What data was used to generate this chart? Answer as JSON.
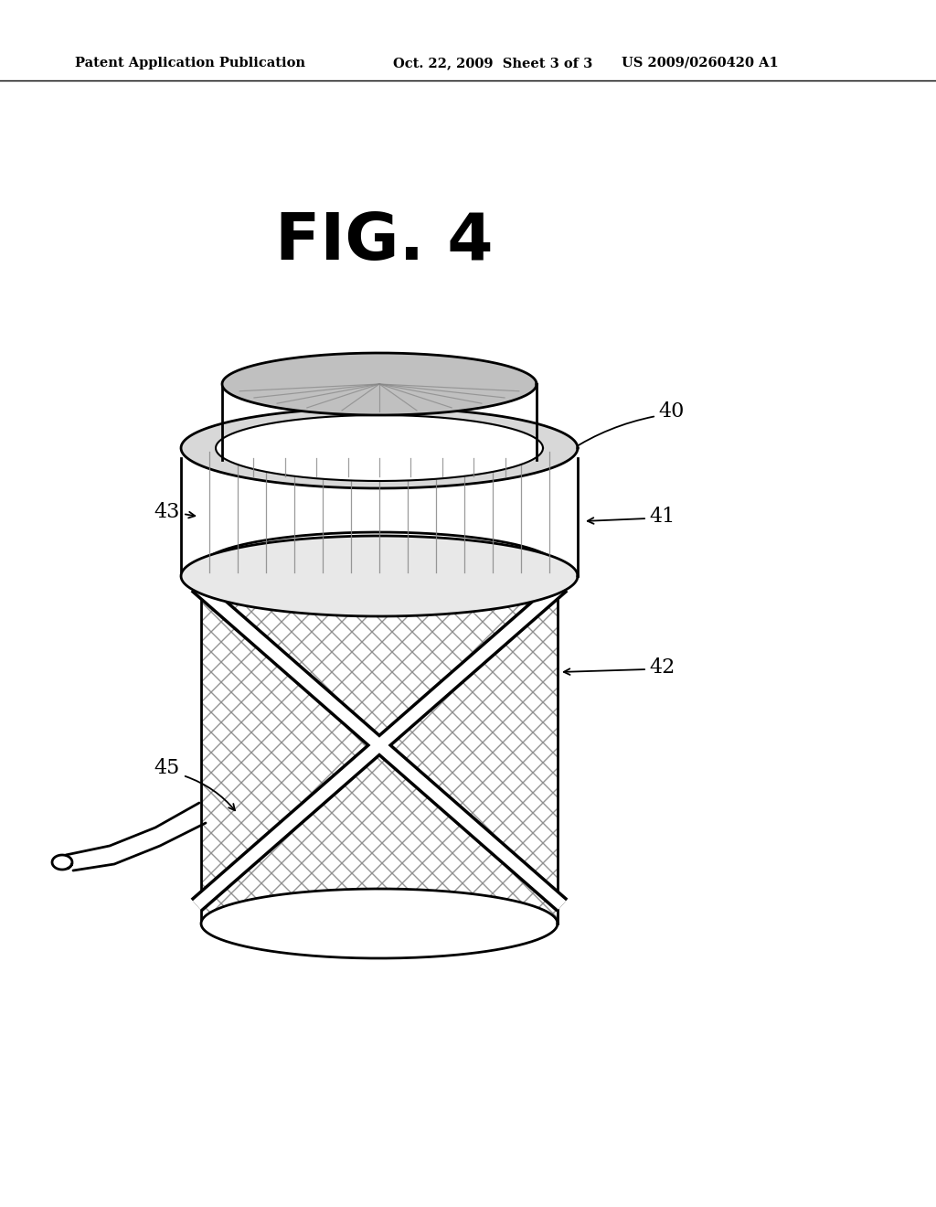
{
  "header_left": "Patent Application Publication",
  "header_mid": "Oct. 22, 2009  Sheet 3 of 3",
  "header_right": "US 2009/0260420 A1",
  "fig_label": "FIG. 4",
  "bg_color": "#ffffff",
  "line_color": "#000000"
}
